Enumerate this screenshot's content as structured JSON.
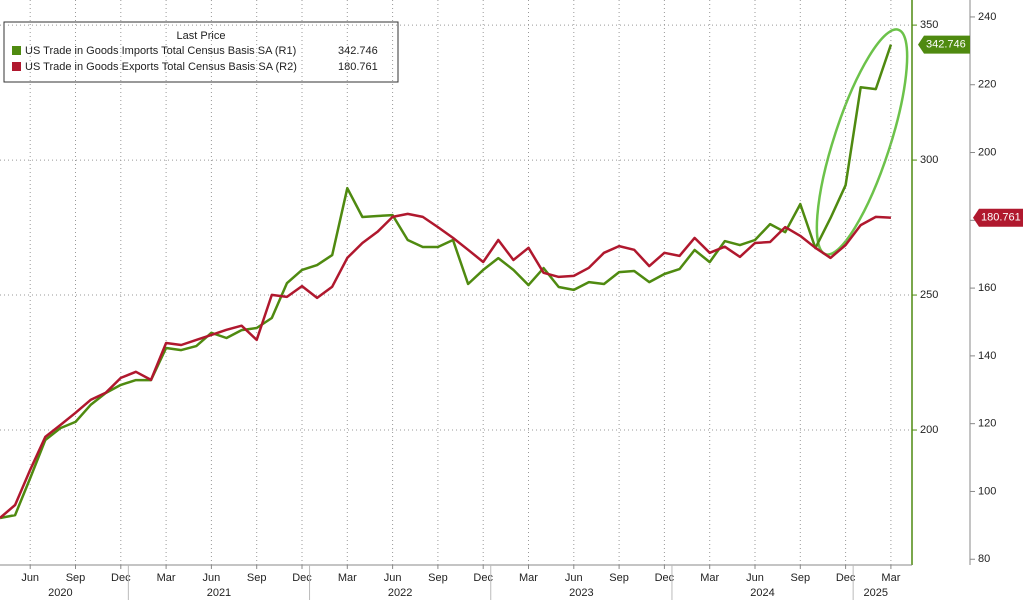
{
  "chart_data": {
    "type": "line",
    "legend_title": "Last Price",
    "x": [
      "2020-04",
      "2020-05",
      "2020-06",
      "2020-07",
      "2020-08",
      "2020-09",
      "2020-10",
      "2020-11",
      "2020-12",
      "2021-01",
      "2021-02",
      "2021-03",
      "2021-04",
      "2021-05",
      "2021-06",
      "2021-07",
      "2021-08",
      "2021-09",
      "2021-10",
      "2021-11",
      "2021-12",
      "2022-01",
      "2022-02",
      "2022-03",
      "2022-04",
      "2022-05",
      "2022-06",
      "2022-07",
      "2022-08",
      "2022-09",
      "2022-10",
      "2022-11",
      "2022-12",
      "2023-01",
      "2023-02",
      "2023-03",
      "2023-04",
      "2023-05",
      "2023-06",
      "2023-07",
      "2023-08",
      "2023-09",
      "2023-10",
      "2023-11",
      "2023-12",
      "2024-01",
      "2024-02",
      "2024-03",
      "2024-04",
      "2024-05",
      "2024-06",
      "2024-07",
      "2024-08",
      "2024-09",
      "2024-10",
      "2024-11",
      "2024-12",
      "2025-01",
      "2025-02",
      "2025-03"
    ],
    "xticks": [
      {
        "value": "2020-06",
        "label": "Jun"
      },
      {
        "value": "2020-09",
        "label": "Sep"
      },
      {
        "value": "2020-12",
        "label": "Dec"
      },
      {
        "value": "2021-03",
        "label": "Mar"
      },
      {
        "value": "2021-06",
        "label": "Jun"
      },
      {
        "value": "2021-09",
        "label": "Sep"
      },
      {
        "value": "2021-12",
        "label": "Dec"
      },
      {
        "value": "2022-03",
        "label": "Mar"
      },
      {
        "value": "2022-06",
        "label": "Jun"
      },
      {
        "value": "2022-09",
        "label": "Sep"
      },
      {
        "value": "2022-12",
        "label": "Dec"
      },
      {
        "value": "2023-03",
        "label": "Mar"
      },
      {
        "value": "2023-06",
        "label": "Jun"
      },
      {
        "value": "2023-09",
        "label": "Sep"
      },
      {
        "value": "2023-12",
        "label": "Dec"
      },
      {
        "value": "2024-03",
        "label": "Mar"
      },
      {
        "value": "2024-06",
        "label": "Jun"
      },
      {
        "value": "2024-09",
        "label": "Sep"
      },
      {
        "value": "2024-12",
        "label": "Dec"
      },
      {
        "value": "2025-03",
        "label": "Mar"
      }
    ],
    "year_labels": [
      "2020",
      "2021",
      "2022",
      "2023",
      "2024",
      "2025"
    ],
    "ylim": [
      150,
      359.3
    ],
    "yticks": [
      200,
      250,
      300,
      350
    ],
    "y2lim": [
      78.3,
      245
    ],
    "y2ticks": [
      80,
      100,
      120,
      140,
      160,
      180,
      200,
      220,
      240
    ],
    "grid": true,
    "series": [
      {
        "name": "US Trade in Goods Imports Total Census Basis SA  (R1)",
        "color": "#4f8a10",
        "axis": "y",
        "values": [
          167.4,
          168.5,
          182.2,
          196.3,
          200.7,
          203,
          209.3,
          213.7,
          216.7,
          218.5,
          218.5,
          230.4,
          229.6,
          231.1,
          236,
          234.1,
          237,
          237.8,
          241.5,
          254.4,
          259.3,
          261.1,
          264.8,
          289.6,
          278.9,
          279.3,
          279.6,
          270.4,
          267.8,
          267.8,
          270.4,
          254.1,
          259.3,
          263.7,
          259.3,
          253.7,
          260,
          253,
          251.9,
          254.8,
          254.1,
          258.5,
          258.9,
          254.8,
          257.8,
          259.6,
          266.7,
          262.2,
          270,
          268.5,
          270.4,
          276.3,
          273.3,
          283.7,
          267.4,
          278.5,
          290.7,
          327,
          326.3,
          342.746
        ]
      },
      {
        "name": "US Trade in Goods Exports Total Census Basis SA  (R2)",
        "color": "#b0182e",
        "axis": "y2",
        "values": [
          92.2,
          96,
          106.4,
          116.1,
          119.6,
          123.2,
          127,
          129.1,
          133.5,
          135.3,
          132.9,
          143.8,
          143.2,
          144.7,
          146.2,
          147.7,
          148.9,
          144.7,
          158,
          157.4,
          160.6,
          157.1,
          160.4,
          168.9,
          173.3,
          176.6,
          181,
          181.9,
          181,
          178,
          174.8,
          171.3,
          167.7,
          174.2,
          168.3,
          171.9,
          164.5,
          163.3,
          163.6,
          166,
          170.4,
          172.4,
          171.3,
          166.5,
          170.4,
          169.5,
          174.8,
          170.4,
          172.2,
          169.2,
          173.3,
          173.6,
          178,
          175.4,
          171.9,
          168.9,
          172.7,
          178.6,
          181,
          180.761
        ]
      }
    ]
  }
}
